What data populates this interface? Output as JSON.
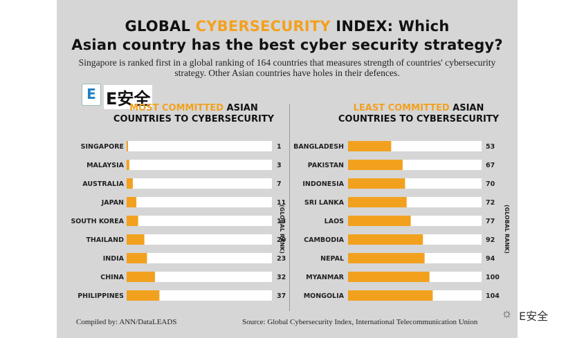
{
  "title": {
    "line1_a": "GLOBAL ",
    "line1_accent": "CYBERSECURITY",
    "line1_b": " INDEX: Which",
    "line2": "Asian country has the best cyber security strategy?"
  },
  "subtitle": "Singapore is ranked first in a global ranking of 164 countries that measures strength of countries' cybersecurity strategy. Other Asian countries have holes in their defences.",
  "logo": {
    "mark": "E",
    "text": "E安全"
  },
  "footer": {
    "left": "Compiled by: ANN/DataLEADS",
    "right": "Source: Global Cybersecurity Index, International Telecommunication Union"
  },
  "watermark": {
    "icon": "wechat-icon",
    "text": "E安全"
  },
  "colors": {
    "bar": "#f2a11f",
    "track": "#ffffff",
    "background": "#d6d6d6",
    "accent": "#f2a11f"
  },
  "chart_data": [
    {
      "type": "bar",
      "orientation": "horizontal",
      "title_accent": "MOST COMMITTED",
      "title_rest": " ASIAN",
      "title_line2": "COUNTRIES TO CYBERSECURITY",
      "value_label": "(GLOBAL RANK)",
      "categories": [
        "SINGAPORE",
        "MALAYSIA",
        "AUSTRALIA",
        "JAPAN",
        "SOUTH KOREA",
        "THAILAND",
        "INDIA",
        "CHINA",
        "PHILIPPINES"
      ],
      "values": [
        1,
        3,
        7,
        11,
        13,
        20,
        23,
        32,
        37
      ],
      "xlim": [
        0,
        164
      ]
    },
    {
      "type": "bar",
      "orientation": "horizontal",
      "title_accent": "LEAST COMMITTED",
      "title_rest": " ASIAN",
      "title_line2": "COUNTRIES TO CYBERSECURITY",
      "value_label": "(GLOBAL RANK)",
      "categories": [
        "BANGLADESH",
        "PAKISTAN",
        "INDONESIA",
        "SRI LANKA",
        "LAOS",
        "CAMBODIA",
        "NEPAL",
        "MYANMAR",
        "MONGOLIA"
      ],
      "values": [
        53,
        67,
        70,
        72,
        77,
        92,
        94,
        100,
        104
      ],
      "xlim": [
        0,
        164
      ]
    }
  ]
}
